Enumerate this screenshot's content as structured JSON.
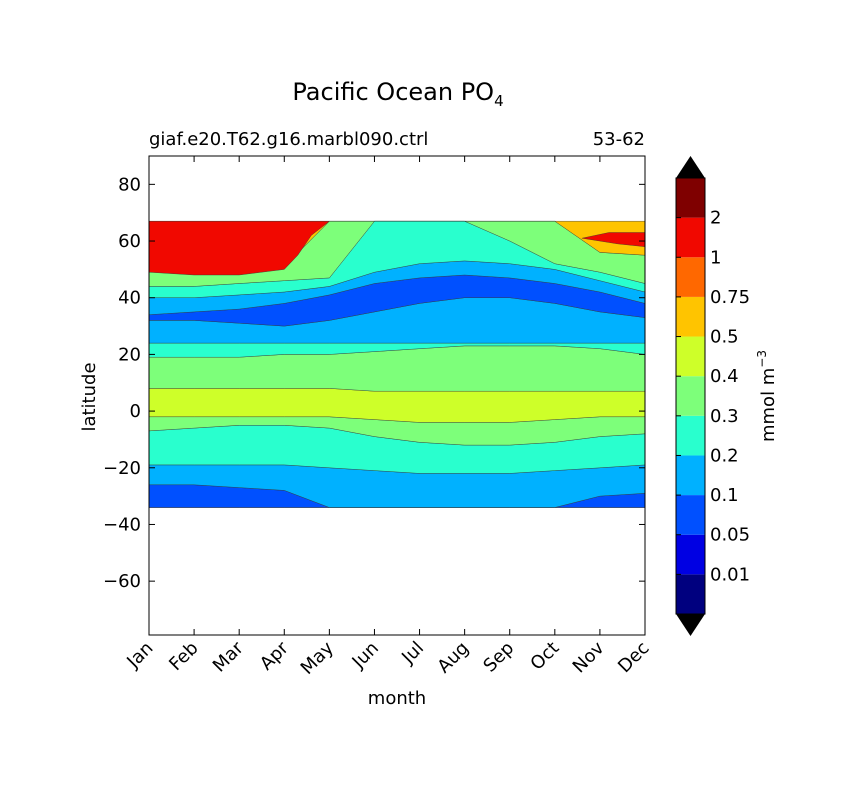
{
  "chart_data": {
    "type": "heatmap",
    "title_main": "Pacific Ocean PO",
    "title_sub": "4",
    "subtitle_left": "giaf.e20.T62.g16.marbl090.ctrl",
    "subtitle_right": "53-62",
    "xlabel": "month",
    "ylabel": "latitude",
    "x_tick_labels": [
      "Jan",
      "Feb",
      "Mar",
      "Apr",
      "May",
      "Jun",
      "Jul",
      "Aug",
      "Sep",
      "Oct",
      "Nov",
      "Dec"
    ],
    "y_ticks": [
      80,
      60,
      40,
      20,
      0,
      -20,
      -40,
      -60
    ],
    "y_tick_labels": [
      "80",
      "60",
      "40",
      "20",
      "0",
      "−20",
      "−40",
      "−60"
    ],
    "ylim": [
      -79,
      90
    ],
    "xlim": [
      0,
      11
    ],
    "data_lat_range": [
      -34,
      67
    ],
    "colorbar": {
      "label_main": "mmol m",
      "label_sup": "−3",
      "levels": [
        "0.01",
        "0.05",
        "0.1",
        "0.2",
        "0.3",
        "0.4",
        "0.5",
        "0.75",
        "1",
        "2"
      ],
      "extend": "both"
    },
    "colors": [
      "#00007f",
      "#0000e3",
      "#0050ff",
      "#00b1ff",
      "#29ffce",
      "#7dff7a",
      "#ceff29",
      "#ffc400",
      "#ff6800",
      "#f10800",
      "#7f0000"
    ],
    "bands": {
      "month_x": [
        0,
        1,
        2,
        3,
        4,
        5,
        6,
        7,
        8,
        9,
        10,
        11
      ],
      "boundaries": [
        {
          "level": 1,
          "lat": [
            -34,
            -34,
            -34,
            -34,
            -34,
            -34,
            -34,
            -34,
            -34,
            -34,
            -34,
            -34
          ]
        },
        {
          "level": 2,
          "lat": [
            -34,
            -34,
            -34,
            -34,
            -34,
            -34,
            -34,
            -34,
            -34,
            -34,
            -34,
            -34
          ]
        },
        {
          "level": 3,
          "lat": [
            -26,
            -26,
            -27,
            -28,
            -34,
            -34,
            -34,
            -34,
            -34,
            -34,
            -30,
            -29
          ]
        },
        {
          "level": 4,
          "lat": [
            -19,
            -19,
            -19,
            -19,
            -20,
            -21,
            -22,
            -22,
            -22,
            -21,
            -20,
            -19
          ]
        },
        {
          "level": 5,
          "lat": [
            -7,
            -6,
            -5,
            -5,
            -6,
            -9,
            -11,
            -12,
            -12,
            -11,
            -9,
            -8
          ]
        },
        {
          "level": 6,
          "lat": [
            -2,
            -2,
            -2,
            -2,
            -2,
            -3,
            -4,
            -4,
            -4,
            -3,
            -2,
            -2
          ]
        },
        {
          "level": 7,
          "lat": [
            8,
            8,
            8,
            8,
            8,
            7,
            7,
            7,
            7,
            7,
            7,
            7
          ]
        },
        {
          "level": 8,
          "lat": [
            19,
            19,
            19,
            20,
            20,
            21,
            22,
            23,
            23,
            23,
            22,
            20
          ]
        },
        {
          "level": 9,
          "lat": [
            24,
            24,
            24,
            24,
            24,
            24,
            24,
            24,
            24,
            24,
            24,
            24
          ]
        },
        {
          "level": 10,
          "lat": [
            32,
            32,
            31,
            30,
            32,
            35,
            38,
            40,
            40,
            38,
            35,
            33
          ]
        },
        {
          "level": 11,
          "lat": [
            34,
            35,
            36,
            38,
            41,
            45,
            47,
            48,
            47,
            45,
            42,
            38
          ]
        },
        {
          "level": 12,
          "lat": [
            40,
            40,
            41,
            42,
            44,
            49,
            52,
            53,
            52,
            50,
            46,
            42
          ]
        },
        {
          "level": 13,
          "lat": [
            44,
            44,
            45,
            46,
            47,
            67,
            67,
            67,
            60,
            52,
            49,
            45
          ]
        },
        {
          "level": 14,
          "lat": [
            49,
            49,
            49,
            51,
            67,
            67,
            67,
            67,
            67,
            67,
            56,
            55
          ]
        },
        {
          "level": 15,
          "lat": [
            67,
            67,
            67,
            67,
            67,
            67,
            67,
            67,
            67,
            67,
            67,
            67
          ]
        }
      ]
    },
    "levels_to_color_index": [
      0,
      1,
      2,
      3,
      4,
      5,
      6,
      7,
      8,
      9,
      10
    ]
  }
}
